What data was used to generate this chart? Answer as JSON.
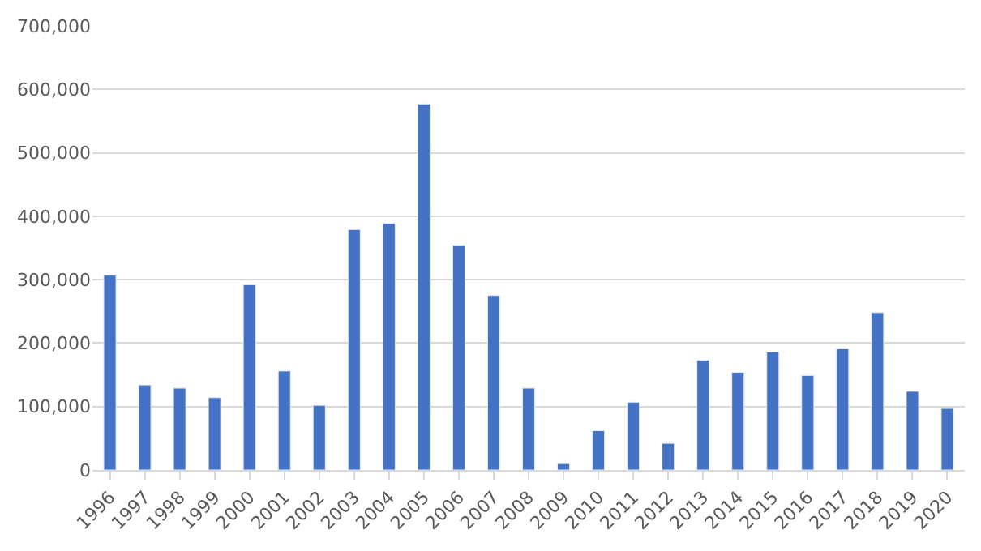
{
  "chart_data": {
    "type": "bar",
    "categories": [
      "1996",
      "1997",
      "1998",
      "1999",
      "2000",
      "2001",
      "2002",
      "2003",
      "2004",
      "2005",
      "2006",
      "2007",
      "2008",
      "2009",
      "2010",
      "2011",
      "2012",
      "2013",
      "2014",
      "2015",
      "2016",
      "2017",
      "2018",
      "2019",
      "2020"
    ],
    "values": [
      307000,
      134000,
      129000,
      114000,
      292000,
      156000,
      102000,
      379000,
      389000,
      577000,
      354000,
      275000,
      129000,
      10000,
      62000,
      107000,
      42000,
      173000,
      154000,
      186000,
      149000,
      191000,
      248000,
      124000,
      97000
    ],
    "color": "#4472c4",
    "ylim": [
      0,
      700000
    ],
    "yticks": [
      {
        "value": 0,
        "label": "0"
      },
      {
        "value": 100000,
        "label": "100,000"
      },
      {
        "value": 200000,
        "label": "200,000"
      },
      {
        "value": 300000,
        "label": "300,000"
      },
      {
        "value": 400000,
        "label": "400,000"
      },
      {
        "value": 500000,
        "label": "500,000"
      },
      {
        "value": 600000,
        "label": "600,000"
      },
      {
        "value": 700000,
        "label": "700,000"
      }
    ],
    "grid": "y",
    "legend": false
  }
}
